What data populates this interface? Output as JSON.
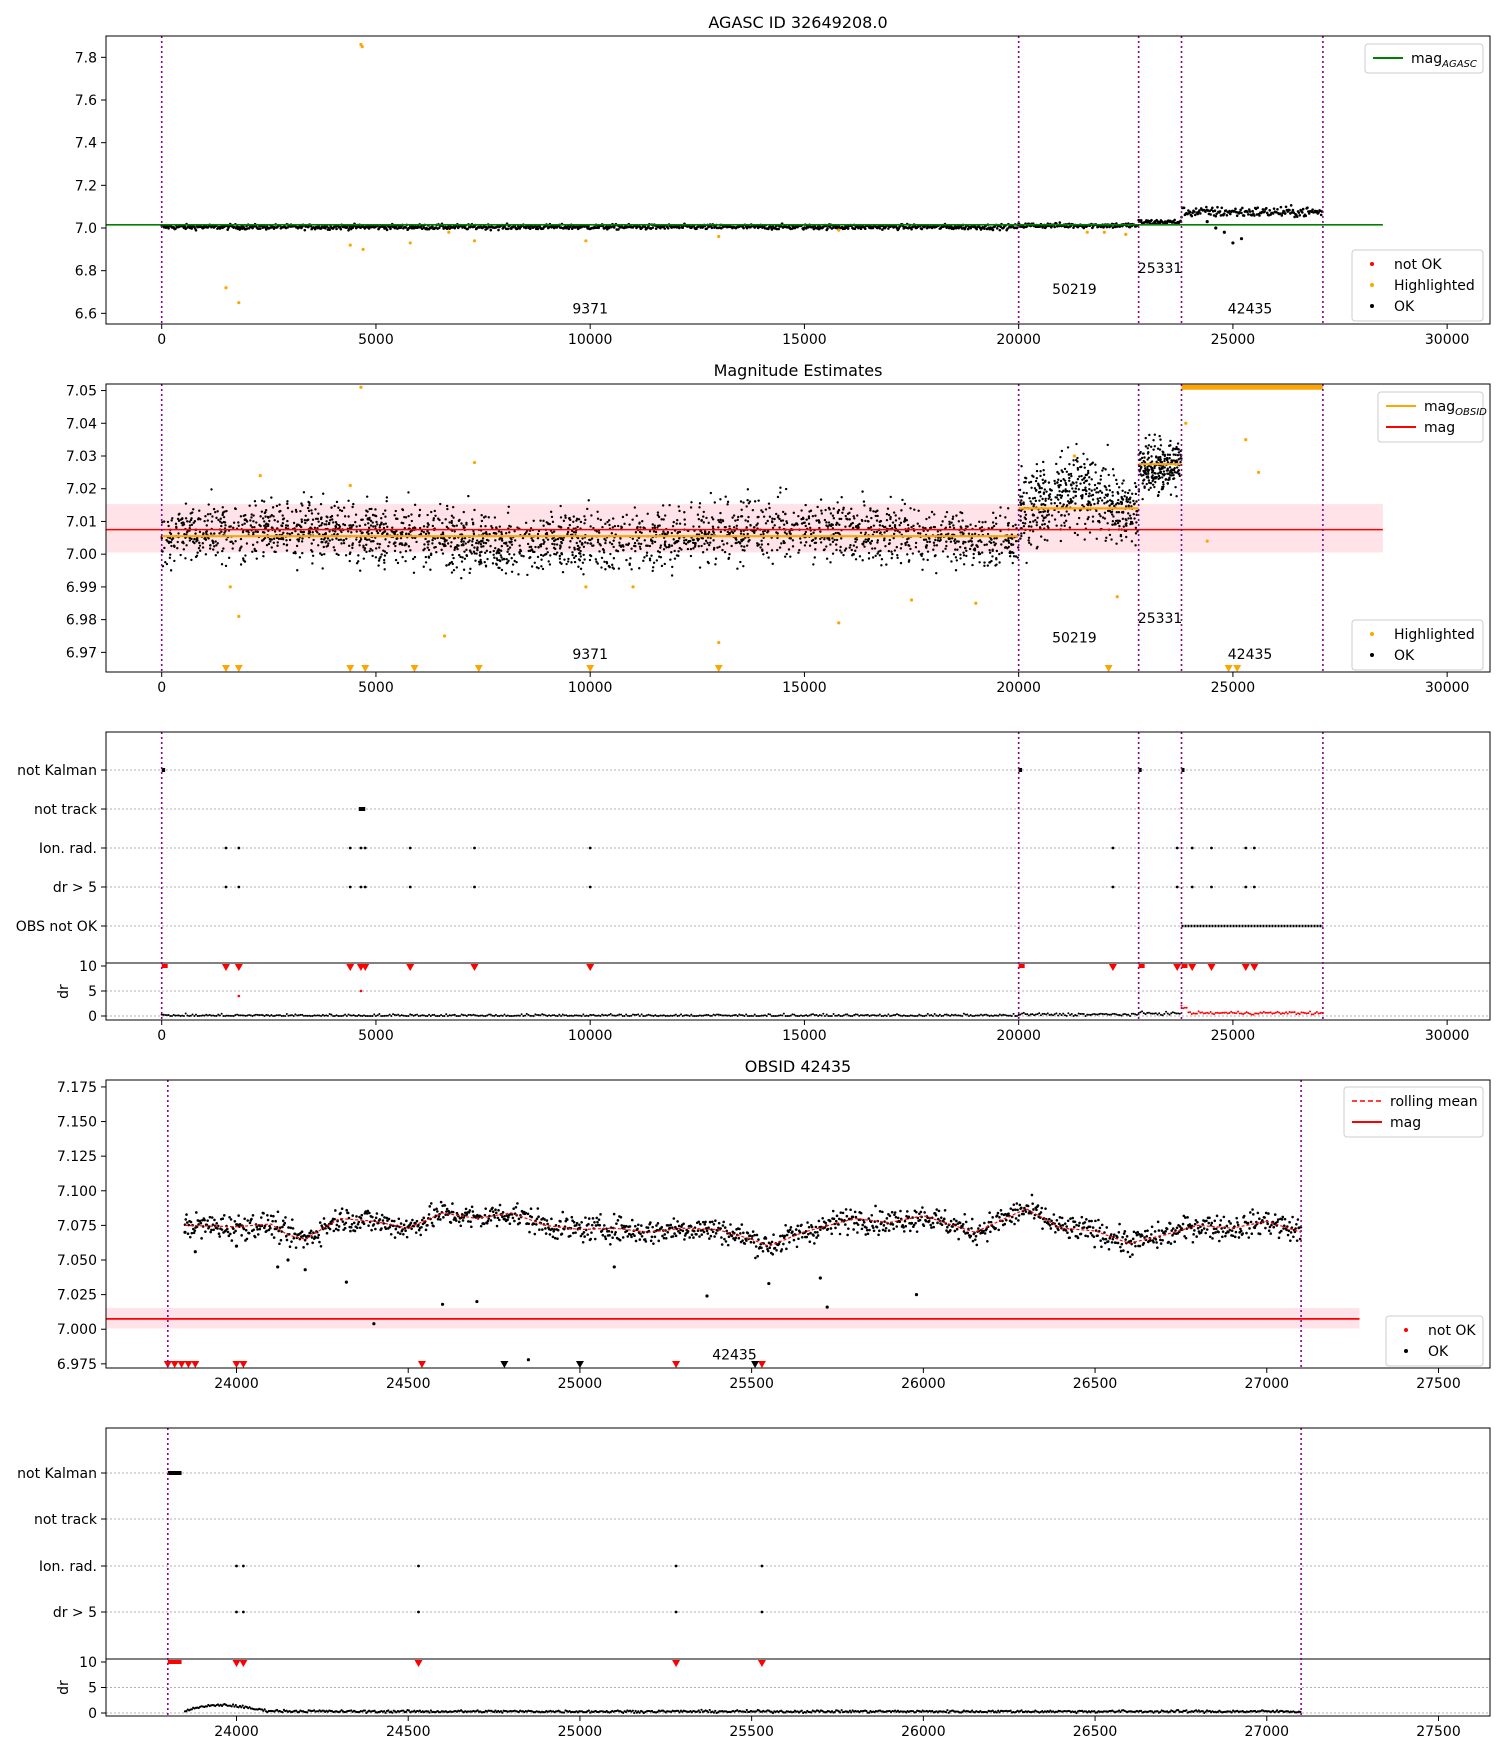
{
  "figure": {
    "panels": [
      {
        "title": "AGASC ID 32649208.0",
        "x_ticks": [
          0,
          5000,
          10000,
          15000,
          20000,
          25000,
          30000
        ],
        "x_range": [
          -1300,
          31000
        ],
        "y_ticks": [
          6.6,
          6.8,
          7.0,
          7.2,
          7.4,
          7.6,
          7.8
        ],
        "y_range": [
          6.55,
          7.9
        ],
        "legend_top": [
          {
            "label": "mag",
            "subscript": "AGASC",
            "color": "#008000",
            "style": "line"
          }
        ],
        "legend_bottom": [
          {
            "label": "not OK",
            "color": "#ff0000",
            "style": "dot"
          },
          {
            "label": "Highlighted",
            "color": "#ffa500",
            "style": "dot"
          },
          {
            "label": "OK",
            "color": "#000000",
            "style": "dot"
          }
        ],
        "obsid_labels": [
          {
            "text": "9371",
            "x": 10000,
            "y": 6.6
          },
          {
            "text": "50219",
            "x": 21300,
            "y": 6.69
          },
          {
            "text": "25331",
            "x": 23300,
            "y": 6.79
          },
          {
            "text": "42435",
            "x": 25400,
            "y": 6.6
          }
        ]
      },
      {
        "title": "Magnitude Estimates",
        "x_ticks": [
          0,
          5000,
          10000,
          15000,
          20000,
          25000,
          30000
        ],
        "x_range": [
          -1300,
          31000
        ],
        "y_ticks": [
          6.97,
          6.98,
          6.99,
          7.0,
          7.01,
          7.02,
          7.03,
          7.04,
          7.05
        ],
        "y_range": [
          6.964,
          7.052
        ],
        "legend_top": [
          {
            "label": "mag",
            "subscript": "OBSID",
            "color": "#ffa500",
            "style": "line"
          },
          {
            "label": "mag",
            "subscript": "",
            "color": "#ff0000",
            "style": "line"
          }
        ],
        "legend_bottom": [
          {
            "label": "Highlighted",
            "color": "#ffa500",
            "style": "dot"
          },
          {
            "label": "OK",
            "color": "#000000",
            "style": "dot"
          }
        ],
        "obsid_labels": [
          {
            "text": "9371",
            "x": 10000,
            "y": 6.968
          },
          {
            "text": "50219",
            "x": 21300,
            "y": 6.973
          },
          {
            "text": "25331",
            "x": 23300,
            "y": 6.979
          },
          {
            "text": "42435",
            "x": 25400,
            "y": 6.968
          }
        ]
      },
      {
        "title": "",
        "flag_labels": [
          "not Kalman",
          "not track",
          "Ion. rad.",
          "dr > 5",
          "OBS not OK"
        ],
        "dr_label": "dr",
        "dr_ticks": [
          0,
          5,
          10
        ],
        "x_ticks": [
          0,
          5000,
          10000,
          15000,
          20000,
          25000,
          30000
        ]
      },
      {
        "title": "OBSID 42435",
        "x_ticks": [
          24000,
          24500,
          25000,
          25500,
          26000,
          26500,
          27000,
          27500
        ],
        "x_range": [
          23620,
          27650
        ],
        "y_ticks": [
          6.975,
          7.0,
          7.025,
          7.05,
          7.075,
          7.1,
          7.125,
          7.15,
          7.175
        ],
        "y_range": [
          6.972,
          7.18
        ],
        "legend_top": [
          {
            "label": "rolling mean",
            "color": "#ff0000",
            "style": "dashed"
          },
          {
            "label": "mag",
            "color": "#ff0000",
            "style": "line"
          }
        ],
        "legend_bottom": [
          {
            "label": "not OK",
            "color": "#ff0000",
            "style": "dot"
          },
          {
            "label": "OK",
            "color": "#000000",
            "style": "dot"
          }
        ],
        "obsid_labels": [
          {
            "text": "42435",
            "x": 25450,
            "y": 6.978
          }
        ]
      },
      {
        "title": "",
        "flag_labels": [
          "not Kalman",
          "not track",
          "Ion. rad.",
          "dr > 5"
        ],
        "dr_label": "dr",
        "dr_ticks": [
          0,
          5,
          10
        ],
        "x_ticks": [
          24000,
          24500,
          25000,
          25500,
          26000,
          26500,
          27000,
          27500
        ]
      }
    ]
  },
  "chart_data": [
    {
      "type": "scatter",
      "title": "AGASC ID 32649208.0",
      "xlabel": "",
      "ylabel": "",
      "xlim": [
        -1300,
        31000
      ],
      "ylim": [
        6.55,
        7.9
      ],
      "grid": false,
      "legend_placement": "top-right / bottom-right",
      "obsid_boundaries": [
        0,
        20000,
        22800,
        23800,
        27100
      ],
      "reference_lines": [
        {
          "name": "mag_AGASC",
          "y": 7.015,
          "x_range": [
            -1300,
            28500
          ],
          "color": "#008000"
        }
      ],
      "segments": [
        {
          "obsid": "9371",
          "x_range": [
            0,
            20000
          ],
          "level": 7.005,
          "color": "#000000"
        },
        {
          "obsid": "50219",
          "x_range": [
            20000,
            22800
          ],
          "level": 7.012,
          "color": "#000000"
        },
        {
          "obsid": "25331",
          "x_range": [
            22800,
            23800
          ],
          "level": 7.028,
          "color": "#000000"
        },
        {
          "obsid": "42435",
          "x_range": [
            23800,
            27100
          ],
          "level": 7.075,
          "color": "#000000"
        }
      ],
      "series": [
        {
          "name": "Highlighted",
          "color": "#ffa500",
          "points": [
            [
              4650,
              7.86
            ],
            [
              4680,
              7.85
            ],
            [
              1500,
              6.72
            ],
            [
              1800,
              6.65
            ],
            [
              4400,
              6.92
            ],
            [
              4700,
              6.9
            ],
            [
              5800,
              6.93
            ],
            [
              6700,
              6.98
            ],
            [
              7300,
              6.94
            ],
            [
              9900,
              6.94
            ],
            [
              13000,
              6.96
            ],
            [
              15800,
              6.99
            ],
            [
              21600,
              6.98
            ],
            [
              22000,
              6.98
            ],
            [
              22500,
              6.97
            ]
          ]
        },
        {
          "name": "OK",
          "color": "#000000",
          "points": [
            [
              24600,
              7.0
            ],
            [
              24800,
              6.98
            ],
            [
              25000,
              6.93
            ],
            [
              25200,
              6.95
            ],
            [
              24400,
              7.03
            ]
          ]
        }
      ]
    },
    {
      "type": "scatter",
      "title": "Magnitude Estimates",
      "xlabel": "",
      "ylabel": "",
      "xlim": [
        -1300,
        31000
      ],
      "ylim": [
        6.964,
        7.052
      ],
      "grid": false,
      "legend_placement": "top-right / bottom-right",
      "obsid_boundaries": [
        0,
        20000,
        22800,
        23800,
        27100
      ],
      "mag": 7.0075,
      "mag_band": [
        7.0005,
        7.0153
      ],
      "mag_obsid": [
        {
          "obsid": "9371",
          "x_range": [
            0,
            20000
          ],
          "value": 7.0055
        },
        {
          "obsid": "50219",
          "x_range": [
            20000,
            22800
          ],
          "value": 7.014
        },
        {
          "obsid": "25331",
          "x_range": [
            22800,
            23800
          ],
          "value": 7.0275
        },
        {
          "obsid": "42435",
          "x_range": [
            23800,
            27100
          ],
          "value": 7.051
        }
      ],
      "series": [
        {
          "name": "Highlighted",
          "color": "#ffa500",
          "points": [
            [
              4650,
              7.051
            ],
            [
              1600,
              6.99
            ],
            [
              1800,
              6.981
            ],
            [
              2300,
              7.024
            ],
            [
              4400,
              7.021
            ],
            [
              6600,
              6.975
            ],
            [
              7300,
              7.028
            ],
            [
              9900,
              6.99
            ],
            [
              11000,
              6.99
            ],
            [
              13000,
              6.973
            ],
            [
              15800,
              6.979
            ],
            [
              17500,
              6.986
            ],
            [
              19000,
              6.985
            ],
            [
              21300,
              7.03
            ],
            [
              22300,
              6.987
            ],
            [
              23900,
              7.04
            ],
            [
              24400,
              7.004
            ],
            [
              25300,
              7.035
            ],
            [
              25600,
              7.025
            ]
          ]
        },
        {
          "name": "Highlighted (below range)",
          "color": "#ffa500",
          "marker": "down-triangle",
          "x": [
            1500,
            1800,
            4400,
            4750,
            5900,
            7400,
            10000,
            13000,
            22100,
            24900,
            25100
          ]
        }
      ]
    },
    {
      "type": "scatter",
      "title": "",
      "xlim": [
        -1300,
        31000
      ],
      "categories": [
        "not Kalman",
        "not track",
        "Ion. rad.",
        "dr > 5",
        "OBS not OK"
      ],
      "flags": {
        "not Kalman": [
          [
            0,
            80
          ],
          [
            20000,
            80
          ],
          [
            22800,
            60
          ],
          [
            23800,
            40
          ]
        ],
        "not track": [
          [
            4600,
            150
          ]
        ],
        "Ion. rad.": [
          1500,
          1800,
          4400,
          4650,
          4750,
          5800,
          7300,
          10000,
          22200,
          23700,
          24050,
          24500,
          25300,
          25500
        ],
        "dr > 5": [
          1500,
          1800,
          4400,
          4650,
          4750,
          5800,
          7300,
          10000,
          22200,
          23700,
          24050,
          24500,
          25300,
          25500
        ],
        "OBS not OK": [
          [
            23800,
            27100
          ]
        ]
      },
      "dr_ylim": [
        0,
        10
      ],
      "dr_levels": [
        {
          "x_range": [
            0,
            20000
          ],
          "value": 0.1
        },
        {
          "x_range": [
            20000,
            22800
          ],
          "value": 0.3
        },
        {
          "x_range": [
            22800,
            23800
          ],
          "value": 0.5
        },
        {
          "x_range": [
            23800,
            27100
          ],
          "value": 0.6
        }
      ],
      "dr_outliers": [
        [
          1800,
          4
        ],
        [
          4650,
          5
        ]
      ]
    },
    {
      "type": "scatter",
      "title": "OBSID 42435",
      "xlabel": "",
      "ylabel": "",
      "xlim": [
        23620,
        27650
      ],
      "ylim": [
        6.972,
        7.18
      ],
      "grid": false,
      "legend_placement": "top-right / bottom-right",
      "obsid_boundaries": [
        23800,
        27100
      ],
      "mag": 7.0075,
      "mag_band": [
        7.0005,
        7.0153
      ],
      "rolling_mean": [
        [
          23850,
          7.075
        ],
        [
          24000,
          7.074
        ],
        [
          24100,
          7.076
        ],
        [
          24150,
          7.068
        ],
        [
          24200,
          7.065
        ],
        [
          24300,
          7.08
        ],
        [
          24400,
          7.078
        ],
        [
          24500,
          7.073
        ],
        [
          24600,
          7.084
        ],
        [
          24700,
          7.08
        ],
        [
          24800,
          7.084
        ],
        [
          24900,
          7.075
        ],
        [
          25000,
          7.072
        ],
        [
          25100,
          7.073
        ],
        [
          25200,
          7.07
        ],
        [
          25300,
          7.073
        ],
        [
          25400,
          7.072
        ],
        [
          25500,
          7.065
        ],
        [
          25550,
          7.06
        ],
        [
          25650,
          7.07
        ],
        [
          25800,
          7.08
        ],
        [
          25900,
          7.077
        ],
        [
          26000,
          7.082
        ],
        [
          26150,
          7.07
        ],
        [
          26300,
          7.087
        ],
        [
          26400,
          7.073
        ],
        [
          26500,
          7.071
        ],
        [
          26600,
          7.062
        ],
        [
          26700,
          7.068
        ],
        [
          26800,
          7.075
        ],
        [
          26900,
          7.073
        ],
        [
          27000,
          7.078
        ],
        [
          27100,
          7.07
        ]
      ],
      "series": [
        {
          "name": "OK (scattered low)",
          "color": "#000000",
          "points": [
            [
              23850,
              7.07
            ],
            [
              23880,
              7.056
            ],
            [
              24000,
              7.06
            ],
            [
              24120,
              7.045
            ],
            [
              24150,
              7.05
            ],
            [
              24200,
              7.043
            ],
            [
              24320,
              7.034
            ],
            [
              24400,
              7.004
            ],
            [
              24600,
              7.018
            ],
            [
              24700,
              7.02
            ],
            [
              24850,
              6.978
            ],
            [
              25100,
              7.045
            ],
            [
              25370,
              7.024
            ],
            [
              25550,
              7.033
            ],
            [
              25700,
              7.037
            ],
            [
              25720,
              7.016
            ],
            [
              25980,
              7.025
            ]
          ]
        },
        {
          "name": "not OK",
          "color": "#ff0000",
          "marker": "down-triangle",
          "x": [
            23800,
            23820,
            23840,
            23860,
            23880,
            24000,
            24020,
            24540,
            25280,
            25530
          ]
        },
        {
          "name": "OK (below range)",
          "color": "#000000",
          "marker": "down-triangle",
          "x": [
            24780,
            25000,
            25510
          ]
        }
      ]
    },
    {
      "type": "scatter",
      "title": "",
      "xlim": [
        23620,
        27650
      ],
      "categories": [
        "not Kalman",
        "not track",
        "Ion. rad.",
        "dr > 5"
      ],
      "flags": {
        "not Kalman": [
          [
            23800,
            40
          ]
        ],
        "not track": [],
        "Ion. rad.": [
          24000,
          24020,
          24530,
          25280,
          25530
        ],
        "dr > 5": [
          24000,
          24020,
          24530,
          25280,
          25530
        ]
      },
      "dr_ylim": [
        0,
        10
      ],
      "dr_curve": [
        [
          23850,
          0.5
        ],
        [
          23900,
          1.2
        ],
        [
          23950,
          1.6
        ],
        [
          24000,
          1.4
        ],
        [
          24050,
          0.8
        ],
        [
          24100,
          0.4
        ],
        [
          24300,
          0.3
        ],
        [
          27100,
          0.3
        ]
      ]
    }
  ]
}
